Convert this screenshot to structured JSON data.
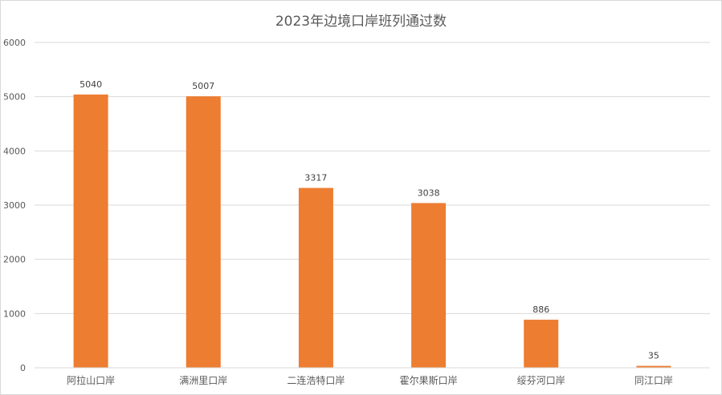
{
  "chart_data": {
    "type": "bar",
    "title": "2023年边境口岸班列通过数",
    "categories": [
      "阿拉山口岸",
      "满洲里口岸",
      "二连浩特口岸",
      "霍尔果斯口岸",
      "绥芬河口岸",
      "同江口岸"
    ],
    "values": [
      5040,
      5007,
      3317,
      3038,
      886,
      35
    ],
    "xlabel": "",
    "ylabel": "",
    "ylim": [
      0,
      6000
    ],
    "yticks": [
      0,
      1000,
      2000,
      3000,
      4000,
      5000,
      6000
    ],
    "grid": true,
    "legend": "none",
    "bar_color": "#ED7D31",
    "grid_color": "#d9d9d9"
  }
}
